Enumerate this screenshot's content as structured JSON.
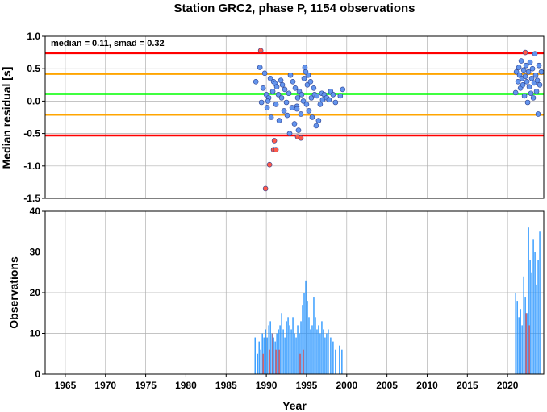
{
  "chart_data": [
    {
      "type": "scatter",
      "title": "Station GRC2, phase P, 1154 observations",
      "ylabel": "Median residual [s]",
      "annotation": "median = 0.11, smad = 0.32",
      "xlim": [
        1962.5,
        2024.5
      ],
      "ylim": [
        -1.5,
        1.0
      ],
      "yticks": [
        "1.0",
        "0.5",
        "0.0",
        "-0.5",
        "-1.0",
        "-1.5"
      ],
      "ytick_values": [
        1.0,
        0.5,
        0.0,
        -0.5,
        -1.0,
        -1.5
      ],
      "grid": true,
      "reference_lines": [
        {
          "y": 0.74,
          "color": "#ff0000"
        },
        {
          "y": 0.42,
          "color": "#ffa500"
        },
        {
          "y": 0.11,
          "color": "#00ff00"
        },
        {
          "y": -0.21,
          "color": "#ffa500"
        },
        {
          "y": -0.53,
          "color": "#ff0000"
        }
      ],
      "series": [
        {
          "color": "#6495ed",
          "points": [
            [
              1988.7,
              0.3
            ],
            [
              1989.2,
              0.52
            ],
            [
              1989.4,
              -0.02
            ],
            [
              1989.6,
              0.2
            ],
            [
              1989.8,
              0.43
            ],
            [
              1990.0,
              0.1
            ],
            [
              1990.1,
              -0.1
            ],
            [
              1990.3,
              0.05
            ],
            [
              1990.5,
              0.35
            ],
            [
              1990.6,
              -0.25
            ],
            [
              1990.8,
              0.15
            ],
            [
              1990.9,
              0.3
            ],
            [
              1991.1,
              0.27
            ],
            [
              1991.2,
              -0.05
            ],
            [
              1991.3,
              0.22
            ],
            [
              1991.5,
              0.1
            ],
            [
              1991.6,
              -0.3
            ],
            [
              1991.8,
              0.32
            ],
            [
              1991.9,
              0.05
            ],
            [
              1992.0,
              0.25
            ],
            [
              1992.2,
              -0.15
            ],
            [
              1992.3,
              0.18
            ],
            [
              1992.5,
              -0.02
            ],
            [
              1992.6,
              -0.22
            ],
            [
              1992.8,
              0.12
            ],
            [
              1992.9,
              -0.5
            ],
            [
              1993.0,
              0.4
            ],
            [
              1993.2,
              -0.1
            ],
            [
              1993.3,
              0.3
            ],
            [
              1993.5,
              -0.35
            ],
            [
              1993.6,
              0.2
            ],
            [
              1993.8,
              -0.08
            ],
            [
              1993.9,
              0.05
            ],
            [
              1994.0,
              -0.45
            ],
            [
              1994.1,
              0.15
            ],
            [
              1994.3,
              -0.2
            ],
            [
              1994.4,
              0.1
            ],
            [
              1994.6,
              0.0
            ],
            [
              1994.7,
              0.35
            ],
            [
              1994.8,
              0.52
            ],
            [
              1995.0,
              -0.05
            ],
            [
              1995.1,
              0.25
            ],
            [
              1995.2,
              0.4
            ],
            [
              1995.3,
              -0.15
            ],
            [
              1995.5,
              0.3
            ],
            [
              1995.6,
              0.05
            ],
            [
              1995.7,
              -0.25
            ],
            [
              1995.9,
              0.2
            ],
            [
              1996.0,
              0.1
            ],
            [
              1996.2,
              -0.38
            ],
            [
              1996.3,
              0.08
            ],
            [
              1996.5,
              -0.3
            ],
            [
              1996.7,
              -0.05
            ],
            [
              1996.9,
              0.12
            ],
            [
              1997.0,
              0.02
            ],
            [
              1997.2,
              0.1
            ],
            [
              1997.5,
              0.05
            ],
            [
              1997.8,
              0.02
            ],
            [
              1998.0,
              0.15
            ],
            [
              1998.3,
              0.1
            ],
            [
              1998.6,
              -0.02
            ],
            [
              1999.2,
              0.08
            ],
            [
              1999.5,
              0.18
            ],
            [
              1993.8,
              -0.12
            ],
            [
              1994.9,
              0.45
            ],
            [
              1990.2,
              0.0
            ],
            [
              2021.0,
              0.13
            ],
            [
              2021.1,
              0.45
            ],
            [
              2021.3,
              0.3
            ],
            [
              2021.4,
              0.52
            ],
            [
              2021.5,
              0.4
            ],
            [
              2021.6,
              0.2
            ],
            [
              2021.7,
              0.62
            ],
            [
              2021.8,
              0.35
            ],
            [
              2021.9,
              0.25
            ],
            [
              2022.0,
              0.48
            ],
            [
              2022.1,
              0.08
            ],
            [
              2022.2,
              0.38
            ],
            [
              2022.3,
              0.55
            ],
            [
              2022.4,
              0.3
            ],
            [
              2022.5,
              -0.02
            ],
            [
              2022.6,
              0.45
            ],
            [
              2022.7,
              0.22
            ],
            [
              2022.8,
              0.6
            ],
            [
              2022.9,
              0.12
            ],
            [
              2023.0,
              0.35
            ],
            [
              2023.1,
              0.5
            ],
            [
              2023.2,
              0.05
            ],
            [
              2023.3,
              0.28
            ],
            [
              2023.4,
              0.73
            ],
            [
              2023.5,
              0.4
            ],
            [
              2023.6,
              0.15
            ],
            [
              2023.7,
              0.32
            ],
            [
              2023.8,
              -0.2
            ],
            [
              2023.9,
              0.55
            ],
            [
              2024.0,
              0.25
            ],
            [
              2024.2,
              0.45
            ]
          ]
        },
        {
          "color": "#ff5a4a",
          "points": [
            [
              1989.3,
              0.78
            ],
            [
              1989.9,
              -1.35
            ],
            [
              1990.4,
              -0.98
            ],
            [
              1990.9,
              -0.75
            ],
            [
              1991.0,
              -0.61
            ],
            [
              1991.2,
              -0.75
            ],
            [
              1993.9,
              -0.55
            ],
            [
              1994.3,
              -0.57
            ],
            [
              2022.2,
              0.75
            ]
          ]
        }
      ]
    },
    {
      "type": "bar",
      "ylabel": "Observations",
      "xlabel": "Year",
      "xlim": [
        1962.5,
        2024.5
      ],
      "ylim": [
        0,
        40
      ],
      "xticks": [
        "1965",
        "1970",
        "1975",
        "1980",
        "1985",
        "1990",
        "1995",
        "2000",
        "2005",
        "2010",
        "2015",
        "2020"
      ],
      "xtick_values": [
        1965,
        1970,
        1975,
        1980,
        1985,
        1990,
        1995,
        2000,
        2005,
        2010,
        2015,
        2020
      ],
      "yticks": [
        "40",
        "30",
        "20",
        "10",
        "0"
      ],
      "ytick_values": [
        40,
        30,
        20,
        10,
        0
      ],
      "grid": true,
      "series": [
        {
          "color": "#1e90ff",
          "bars": [
            [
              1988.6,
              9
            ],
            [
              1988.9,
              5
            ],
            [
              1989.1,
              8
            ],
            [
              1989.3,
              6
            ],
            [
              1989.5,
              10
            ],
            [
              1989.7,
              9
            ],
            [
              1989.9,
              11
            ],
            [
              1990.1,
              9
            ],
            [
              1990.3,
              12
            ],
            [
              1990.5,
              13
            ],
            [
              1990.7,
              10
            ],
            [
              1990.9,
              9
            ],
            [
              1991.1,
              8
            ],
            [
              1991.3,
              10
            ],
            [
              1991.5,
              11
            ],
            [
              1991.7,
              12
            ],
            [
              1991.9,
              15
            ],
            [
              1992.1,
              11
            ],
            [
              1992.3,
              9
            ],
            [
              1992.5,
              13
            ],
            [
              1992.7,
              14
            ],
            [
              1992.9,
              12
            ],
            [
              1993.1,
              11
            ],
            [
              1993.3,
              14
            ],
            [
              1993.5,
              10
            ],
            [
              1993.7,
              9
            ],
            [
              1993.9,
              12
            ],
            [
              1994.1,
              10
            ],
            [
              1994.3,
              13
            ],
            [
              1994.5,
              17
            ],
            [
              1994.7,
              20
            ],
            [
              1994.9,
              23
            ],
            [
              1995.1,
              18
            ],
            [
              1995.3,
              14
            ],
            [
              1995.5,
              11
            ],
            [
              1995.7,
              12
            ],
            [
              1995.9,
              19
            ],
            [
              1996.1,
              14
            ],
            [
              1996.3,
              11
            ],
            [
              1996.5,
              12
            ],
            [
              1996.7,
              10
            ],
            [
              1996.9,
              13
            ],
            [
              1997.1,
              11
            ],
            [
              1997.3,
              9
            ],
            [
              1997.5,
              10
            ],
            [
              1997.7,
              11
            ],
            [
              1998.0,
              9
            ],
            [
              1998.3,
              8
            ],
            [
              1998.6,
              6
            ],
            [
              1999.1,
              7
            ],
            [
              1999.4,
              6
            ],
            [
              2021.0,
              20
            ],
            [
              2021.2,
              18
            ],
            [
              2021.4,
              14
            ],
            [
              2021.6,
              16
            ],
            [
              2021.8,
              12
            ],
            [
              2022.0,
              24
            ],
            [
              2022.2,
              19
            ],
            [
              2022.4,
              15
            ],
            [
              2022.6,
              36
            ],
            [
              2022.8,
              28
            ],
            [
              2023.0,
              25
            ],
            [
              2023.2,
              33
            ],
            [
              2023.4,
              30
            ],
            [
              2023.6,
              22
            ],
            [
              2023.8,
              28
            ],
            [
              2024.0,
              35
            ]
          ]
        },
        {
          "color": "#ff5a4a",
          "bars": [
            [
              1989.6,
              5
            ],
            [
              1990.4,
              6
            ],
            [
              1990.8,
              10
            ],
            [
              1991.2,
              6
            ],
            [
              1991.6,
              6
            ],
            [
              1994.2,
              5
            ],
            [
              1994.6,
              6
            ],
            [
              2022.3,
              15
            ],
            [
              2022.7,
              12
            ]
          ]
        }
      ]
    }
  ]
}
